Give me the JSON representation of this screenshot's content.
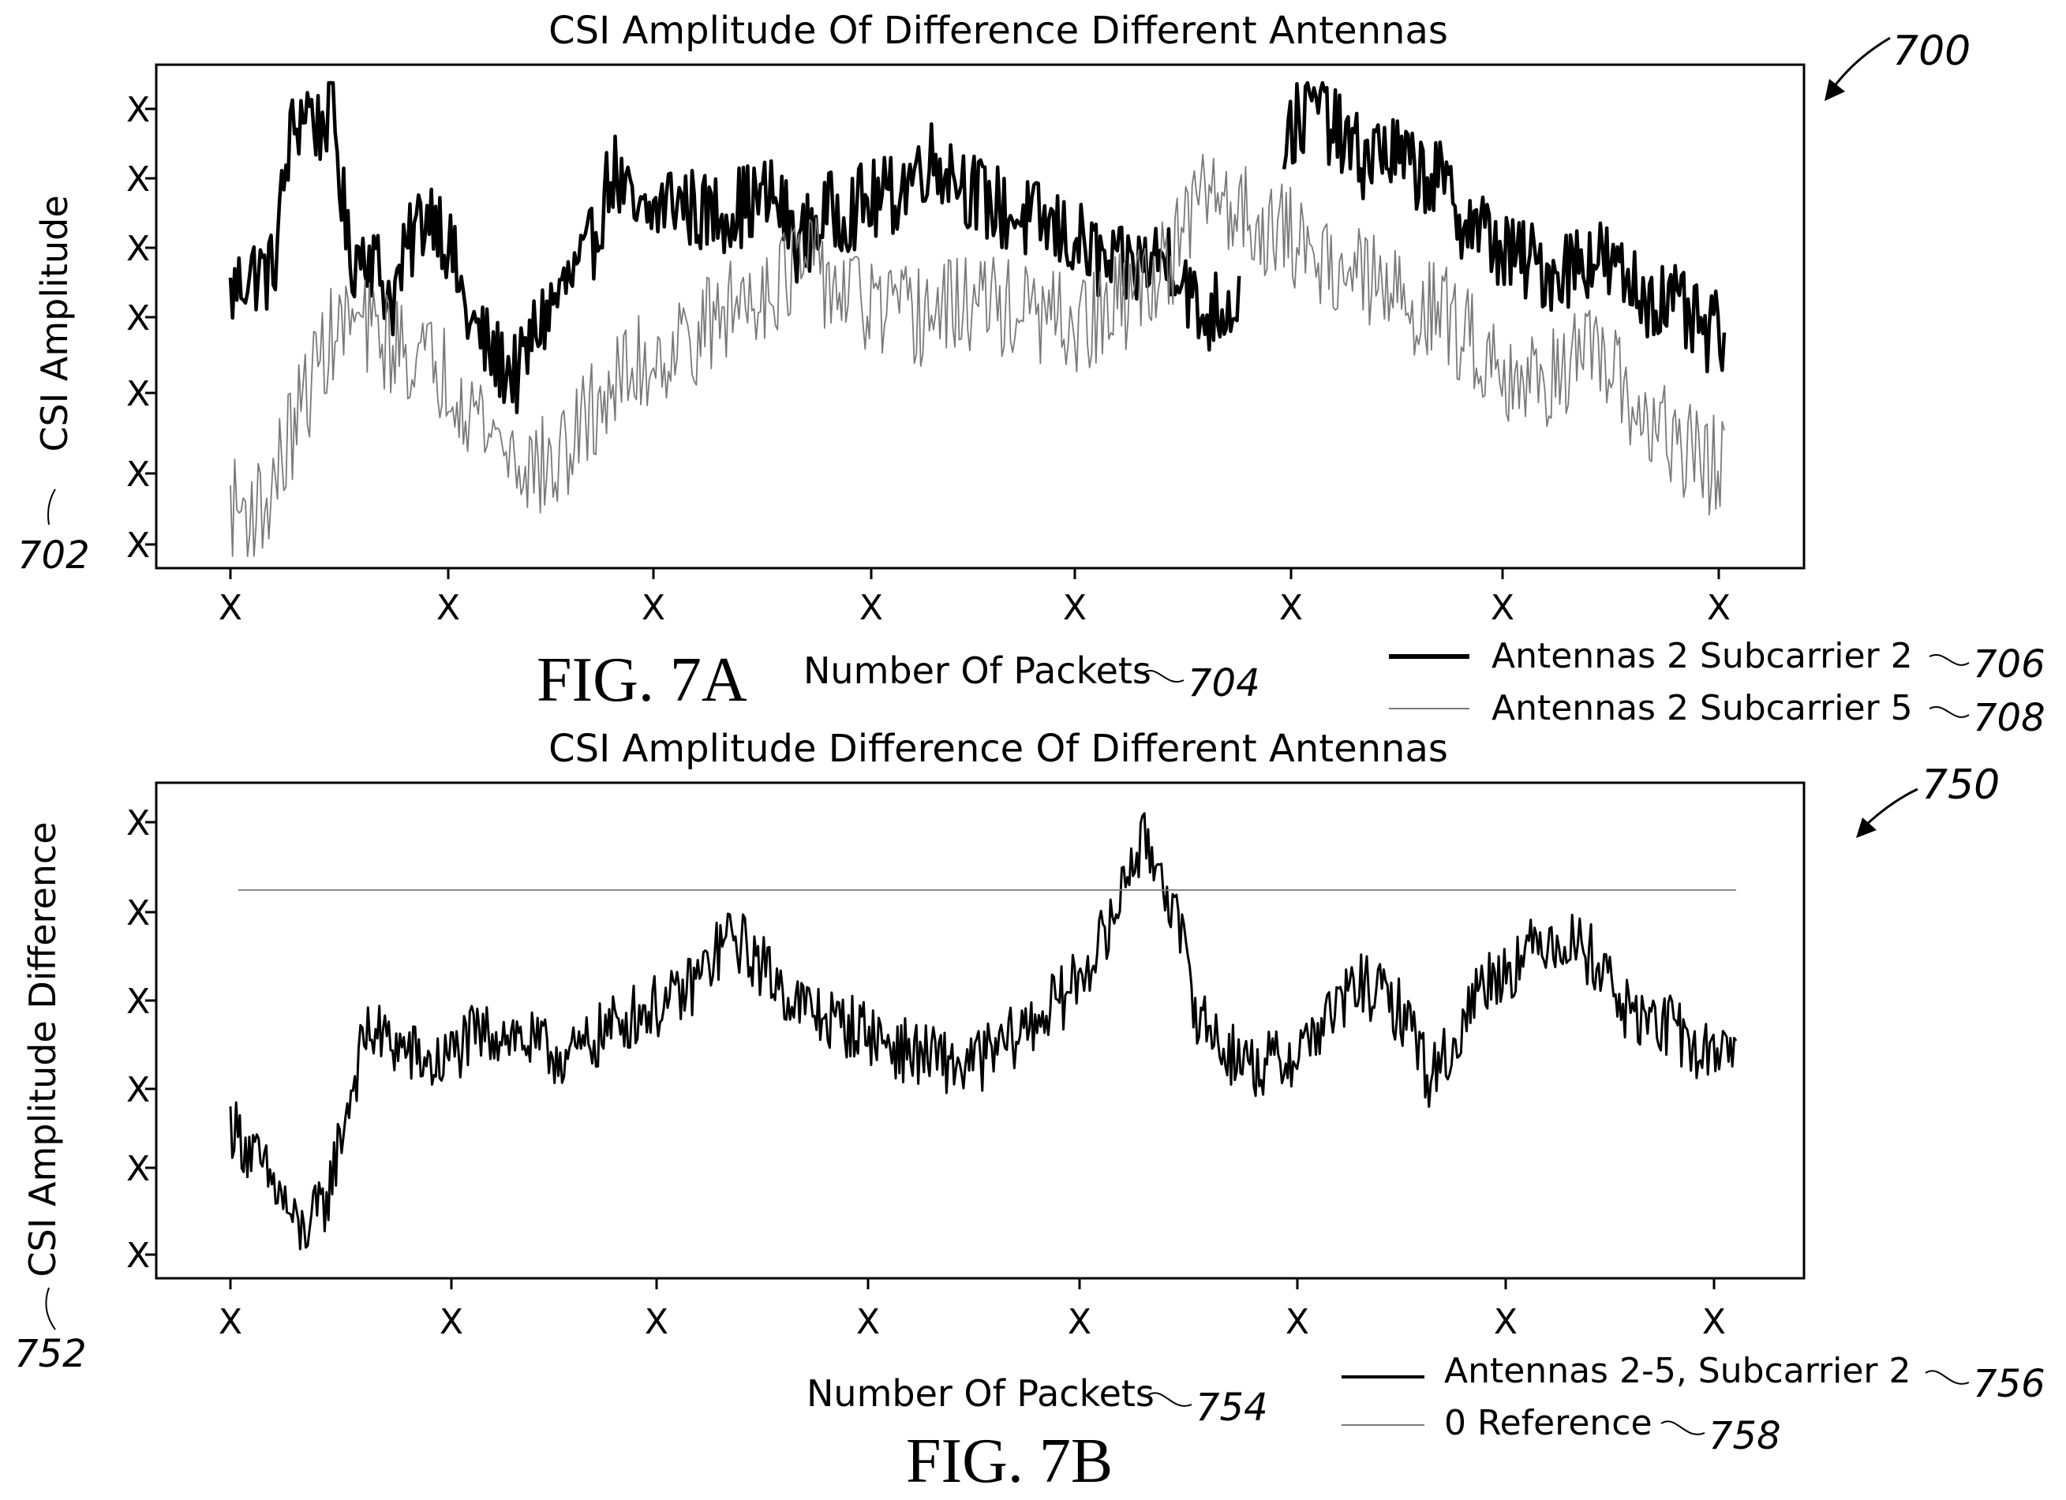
{
  "chart_data": [
    {
      "id": "fig7a",
      "type": "line",
      "title": "CSI Amplitude Of Difference Different Antennas",
      "xlabel": "Number Of Packets",
      "ylabel": "CSI Amplitude",
      "figure_label": "FIG. 7A",
      "ref_figure": "700",
      "ref_ylabel": "702",
      "ref_xlabel": "704",
      "x_tick_labels": [
        "X",
        "X",
        "X",
        "X",
        "X",
        "X",
        "X",
        "X"
      ],
      "y_tick_labels": [
        "X",
        "X",
        "X",
        "X",
        "X",
        "X",
        "X"
      ],
      "grid": false,
      "legend_position": "bottom-right",
      "series": [
        {
          "name": "Antennas 2 Subcarrier 2",
          "ref": "706",
          "color": "#000000",
          "style": "thick",
          "n": 700,
          "anchors": [
            [
              0,
              0.55
            ],
            [
              10,
              0.6
            ],
            [
              25,
              0.6
            ],
            [
              35,
              0.88
            ],
            [
              45,
              0.96
            ],
            [
              52,
              0.9
            ],
            [
              60,
              0.96
            ],
            [
              70,
              0.62
            ],
            [
              80,
              0.66
            ],
            [
              95,
              0.54
            ],
            [
              110,
              0.7
            ],
            [
              120,
              0.74
            ],
            [
              130,
              0.64
            ],
            [
              140,
              0.5
            ],
            [
              155,
              0.42
            ],
            [
              170,
              0.38
            ],
            [
              180,
              0.48
            ],
            [
              195,
              0.56
            ],
            [
              210,
              0.62
            ],
            [
              225,
              0.82
            ],
            [
              240,
              0.7
            ],
            [
              260,
              0.76
            ],
            [
              280,
              0.72
            ],
            [
              300,
              0.74
            ],
            [
              320,
              0.76
            ],
            [
              335,
              0.66
            ],
            [
              350,
              0.72
            ],
            [
              370,
              0.74
            ],
            [
              390,
              0.76
            ],
            [
              410,
              0.84
            ],
            [
              425,
              0.82
            ],
            [
              440,
              0.76
            ],
            [
              460,
              0.72
            ],
            [
              480,
              0.7
            ],
            [
              500,
              0.66
            ],
            [
              520,
              0.6
            ],
            [
              540,
              0.62
            ],
            [
              555,
              0.64
            ],
            [
              565,
              0.56
            ],
            [
              570,
              0.5
            ],
            [
              590,
              0.54
            ],
            [
              600,
              0.58
            ],
            [
              620,
              0.88
            ],
            [
              640,
              0.96
            ],
            [
              650,
              0.9
            ],
            [
              665,
              0.84
            ],
            [
              680,
              0.86
            ],
            [
              695,
              0.82
            ],
            [
              710,
              0.8
            ],
            [
              725,
              0.72
            ],
            [
              740,
              0.68
            ],
            [
              750,
              0.64
            ],
            [
              765,
              0.62
            ],
            [
              780,
              0.6
            ],
            [
              790,
              0.62
            ],
            [
              805,
              0.64
            ],
            [
              815,
              0.6
            ],
            [
              830,
              0.56
            ],
            [
              845,
              0.54
            ],
            [
              860,
              0.5
            ],
            [
              870,
              0.46
            ],
            [
              880,
              0.48
            ]
          ],
          "gaps": [
            [
              595,
              620
            ]
          ]
        },
        {
          "name": "Antennas 2 Subcarrier 5",
          "ref": "708",
          "color": "#7a7a7a",
          "style": "thin",
          "n": 700,
          "anchors": [
            [
              0,
              0.1
            ],
            [
              20,
              0.1
            ],
            [
              40,
              0.3
            ],
            [
              55,
              0.44
            ],
            [
              70,
              0.5
            ],
            [
              90,
              0.46
            ],
            [
              110,
              0.42
            ],
            [
              130,
              0.38
            ],
            [
              150,
              0.28
            ],
            [
              170,
              0.2
            ],
            [
              190,
              0.18
            ],
            [
              205,
              0.26
            ],
            [
              220,
              0.34
            ],
            [
              240,
              0.4
            ],
            [
              260,
              0.44
            ],
            [
              280,
              0.48
            ],
            [
              300,
              0.54
            ],
            [
              320,
              0.58
            ],
            [
              340,
              0.62
            ],
            [
              360,
              0.56
            ],
            [
              380,
              0.52
            ],
            [
              400,
              0.5
            ],
            [
              420,
              0.52
            ],
            [
              440,
              0.54
            ],
            [
              460,
              0.52
            ],
            [
              480,
              0.5
            ],
            [
              500,
              0.48
            ],
            [
              520,
              0.52
            ],
            [
              540,
              0.58
            ],
            [
              560,
              0.66
            ],
            [
              575,
              0.78
            ],
            [
              590,
              0.74
            ],
            [
              610,
              0.7
            ],
            [
              630,
              0.66
            ],
            [
              650,
              0.62
            ],
            [
              670,
              0.58
            ],
            [
              690,
              0.54
            ],
            [
              710,
              0.52
            ],
            [
              730,
              0.46
            ],
            [
              750,
              0.4
            ],
            [
              770,
              0.36
            ],
            [
              790,
              0.42
            ],
            [
              810,
              0.4
            ],
            [
              830,
              0.3
            ],
            [
              850,
              0.24
            ],
            [
              870,
              0.2
            ],
            [
              880,
              0.18
            ]
          ],
          "gaps": []
        }
      ]
    },
    {
      "id": "fig7b",
      "type": "line",
      "title": "CSI Amplitude Difference Of Different Antennas",
      "xlabel": "Number Of Packets",
      "ylabel": "CSI Amplitude Difference",
      "figure_label": "FIG. 7B",
      "ref_figure": "750",
      "ref_ylabel": "752",
      "ref_xlabel": "754",
      "x_tick_labels": [
        "X",
        "X",
        "X",
        "X",
        "X",
        "X",
        "X",
        "X"
      ],
      "y_tick_labels": [
        "X",
        "X",
        "X",
        "X",
        "X",
        "X"
      ],
      "grid": false,
      "legend_position": "bottom-right",
      "series": [
        {
          "name": "Antennas 2-5, Subcarrier 2",
          "ref": "756",
          "color": "#000000",
          "style": "medium",
          "n": 800,
          "anchors": [
            [
              0,
              0.3
            ],
            [
              15,
              0.22
            ],
            [
              30,
              0.14
            ],
            [
              40,
              0.06
            ],
            [
              55,
              0.12
            ],
            [
              70,
              0.36
            ],
            [
              80,
              0.5
            ],
            [
              100,
              0.46
            ],
            [
              120,
              0.42
            ],
            [
              140,
              0.48
            ],
            [
              160,
              0.5
            ],
            [
              180,
              0.46
            ],
            [
              200,
              0.44
            ],
            [
              220,
              0.5
            ],
            [
              240,
              0.54
            ],
            [
              260,
              0.56
            ],
            [
              280,
              0.64
            ],
            [
              290,
              0.7
            ],
            [
              300,
              0.68
            ],
            [
              310,
              0.64
            ],
            [
              330,
              0.56
            ],
            [
              350,
              0.52
            ],
            [
              370,
              0.5
            ],
            [
              390,
              0.46
            ],
            [
              410,
              0.44
            ],
            [
              430,
              0.42
            ],
            [
              450,
              0.46
            ],
            [
              470,
              0.52
            ],
            [
              490,
              0.58
            ],
            [
              500,
              0.64
            ],
            [
              515,
              0.72
            ],
            [
              525,
              0.86
            ],
            [
              535,
              0.9
            ],
            [
              545,
              0.84
            ],
            [
              555,
              0.7
            ],
            [
              565,
              0.54
            ],
            [
              580,
              0.46
            ],
            [
              600,
              0.42
            ],
            [
              620,
              0.44
            ],
            [
              640,
              0.52
            ],
            [
              660,
              0.6
            ],
            [
              670,
              0.58
            ],
            [
              690,
              0.52
            ],
            [
              700,
              0.4
            ],
            [
              715,
              0.46
            ],
            [
              730,
              0.6
            ],
            [
              750,
              0.64
            ],
            [
              770,
              0.7
            ],
            [
              790,
              0.68
            ],
            [
              805,
              0.62
            ],
            [
              815,
              0.54
            ],
            [
              830,
              0.52
            ],
            [
              845,
              0.5
            ],
            [
              860,
              0.44
            ],
            [
              875,
              0.48
            ],
            [
              880,
              0.46
            ]
          ],
          "gaps": []
        },
        {
          "name": "0 Reference",
          "ref": "758",
          "color": "#7a7a7a",
          "style": "thin",
          "constant": 0.8
        }
      ]
    }
  ]
}
